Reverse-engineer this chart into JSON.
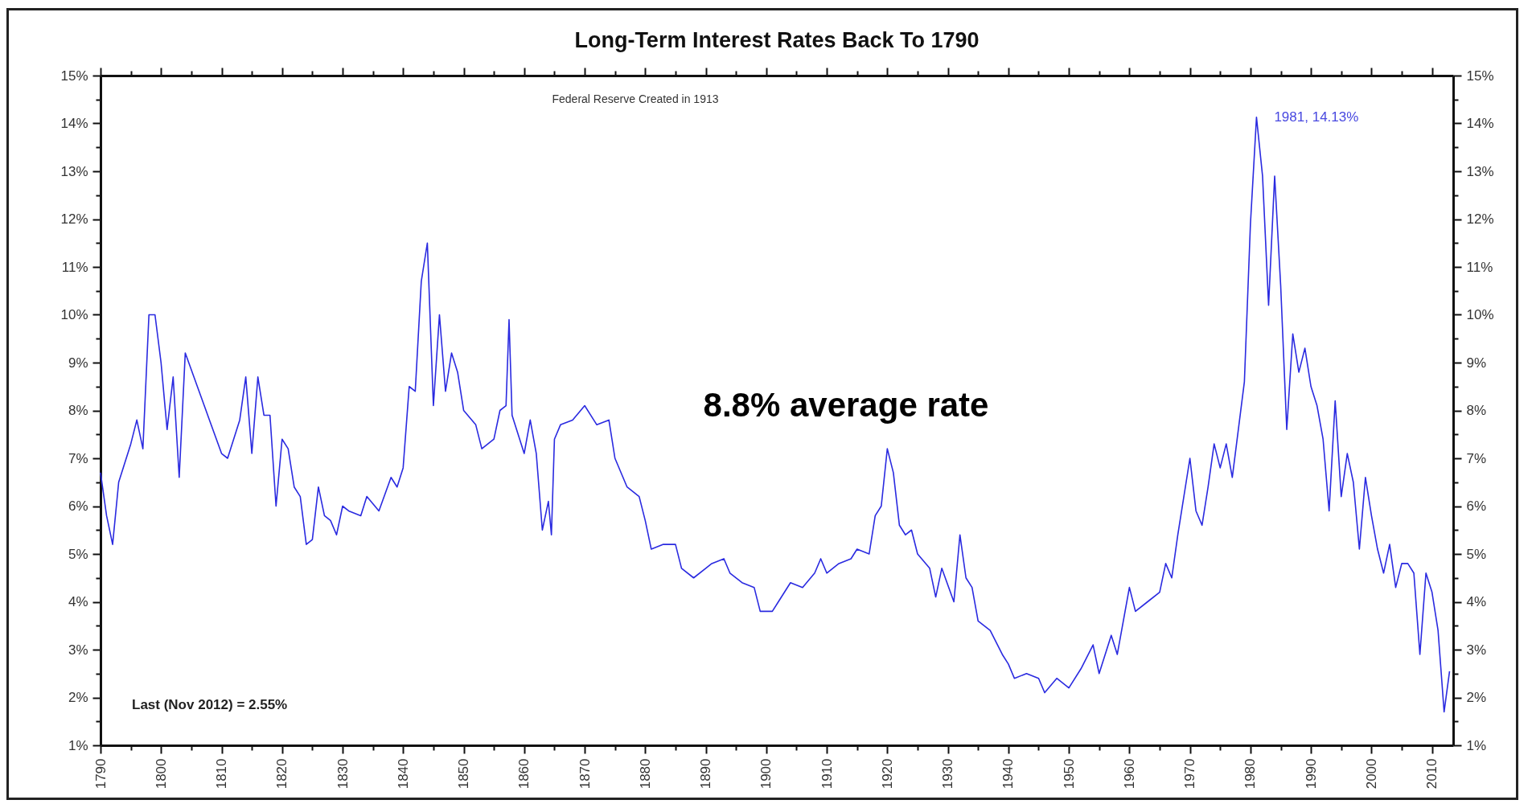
{
  "chart_data": {
    "type": "line",
    "title": "Long-Term Interest Rates Back To 1790",
    "x": [
      1790,
      1791,
      1792,
      1793,
      1795,
      1796,
      1797,
      1798,
      1799,
      1800,
      1801,
      1802,
      1803,
      1804,
      1806,
      1808,
      1810,
      1811,
      1813,
      1814,
      1815,
      1816,
      1817,
      1818,
      1819,
      1820,
      1821,
      1822,
      1823,
      1824,
      1825,
      1826,
      1827,
      1828,
      1829,
      1830,
      1831,
      1833,
      1834,
      1836,
      1838,
      1839,
      1840,
      1841,
      1842,
      1843,
      1844,
      1845,
      1846,
      1847,
      1848,
      1849,
      1850,
      1852,
      1853,
      1855,
      1856,
      1857,
      1857.5,
      1858,
      1859,
      1860,
      1861,
      1862,
      1863,
      1864,
      1864.5,
      1865,
      1866,
      1868,
      1870,
      1872,
      1874,
      1874.5,
      1875,
      1877,
      1879,
      1880,
      1881,
      1883,
      1885,
      1886,
      1888,
      1890,
      1891,
      1893,
      1894,
      1896,
      1898,
      1899,
      1901,
      1902,
      1904,
      1906,
      1908,
      1909,
      1910,
      1912,
      1914,
      1915,
      1917,
      1918,
      1919,
      1920,
      1921,
      1922,
      1923,
      1924,
      1925,
      1927,
      1928,
      1929,
      1931,
      1932,
      1933,
      1934,
      1935,
      1937,
      1939,
      1940,
      1941,
      1943,
      1945,
      1946,
      1948,
      1950,
      1952,
      1954,
      1955,
      1957,
      1958,
      1960,
      1961,
      1963,
      1965,
      1966,
      1967,
      1968,
      1970,
      1971,
      1972,
      1973,
      1974,
      1975,
      1976,
      1977,
      1978,
      1979,
      1980,
      1981,
      1982,
      1983,
      1984,
      1985,
      1986,
      1987,
      1988,
      1989,
      1990,
      1991,
      1992,
      1993,
      1994,
      1995,
      1996,
      1997,
      1998,
      1999,
      2000,
      2001,
      2002,
      2003,
      2004,
      2005,
      2006,
      2007,
      2008,
      2009,
      2010,
      2011,
      2012,
      2012.9
    ],
    "series": [
      {
        "color": "#2a2ae0",
        "values": [
          6.7,
          5.8,
          5.2,
          6.5,
          7.3,
          7.8,
          7.2,
          10.0,
          10.0,
          9.0,
          7.6,
          8.7,
          6.6,
          9.2,
          8.5,
          7.8,
          7.1,
          7.0,
          7.8,
          8.7,
          7.1,
          8.7,
          7.9,
          7.9,
          6.0,
          7.4,
          7.2,
          6.4,
          6.2,
          5.2,
          5.3,
          6.4,
          5.8,
          5.7,
          5.4,
          6.0,
          5.9,
          5.8,
          6.2,
          5.9,
          6.6,
          6.4,
          6.8,
          8.5,
          8.4,
          10.7,
          11.5,
          8.1,
          10.0,
          8.4,
          9.2,
          8.8,
          8.0,
          7.7,
          7.2,
          7.4,
          8.0,
          8.1,
          9.9,
          7.9,
          7.5,
          7.1,
          7.8,
          7.1,
          5.5,
          6.1,
          5.4,
          7.4,
          7.7,
          7.8,
          8.1,
          7.7,
          7.8,
          7.4,
          7.0,
          6.4,
          6.2,
          5.7,
          5.1,
          5.2,
          5.2,
          4.7,
          4.5,
          4.7,
          4.8,
          4.9,
          4.6,
          4.4,
          4.3,
          3.8,
          3.8,
          4.0,
          4.4,
          4.3,
          4.6,
          4.9,
          4.6,
          4.8,
          4.9,
          5.1,
          5.0,
          5.8,
          6.0,
          7.2,
          6.7,
          5.6,
          5.4,
          5.5,
          5.0,
          4.7,
          4.1,
          4.7,
          4.0,
          5.4,
          4.5,
          4.3,
          3.6,
          3.4,
          2.9,
          2.7,
          2.4,
          2.5,
          2.4,
          2.1,
          2.4,
          2.2,
          2.6,
          3.1,
          2.5,
          3.3,
          2.9,
          4.3,
          3.8,
          4.0,
          4.2,
          4.8,
          4.5,
          5.4,
          7.0,
          5.9,
          5.6,
          6.4,
          7.3,
          6.8,
          7.3,
          6.6,
          7.6,
          8.6,
          11.9,
          14.13,
          12.9,
          10.2,
          12.9,
          10.6,
          7.6,
          9.6,
          8.8,
          9.3,
          8.5,
          8.1,
          7.4,
          5.9,
          8.2,
          6.2,
          7.1,
          6.5,
          5.1,
          6.6,
          5.8,
          5.1,
          4.6,
          5.2,
          4.3,
          4.8,
          4.8,
          4.6,
          2.9,
          4.6,
          4.2,
          3.4,
          1.7,
          2.55
        ]
      }
    ],
    "xlim": [
      1790,
      2013.5
    ],
    "xticks": [
      1790,
      {
        "value": 1795,
        "label": null
      },
      1800,
      {
        "value": 1805,
        "label": null
      },
      1810,
      {
        "value": 1815,
        "label": null
      },
      1820,
      {
        "value": 1825,
        "label": null
      },
      1830,
      {
        "value": 1835,
        "label": null
      },
      1840,
      {
        "value": 1845,
        "label": null
      },
      1850,
      {
        "value": 1855,
        "label": null
      },
      1860,
      {
        "value": 1865,
        "label": null
      },
      1870,
      {
        "value": 1875,
        "label": null
      },
      1880,
      {
        "value": 1885,
        "label": null
      },
      1890,
      {
        "value": 1895,
        "label": null
      },
      1900,
      {
        "value": 1905,
        "label": null
      },
      1910,
      {
        "value": 1915,
        "label": null
      },
      1920,
      {
        "value": 1925,
        "label": null
      },
      1930,
      {
        "value": 1935,
        "label": null
      },
      1940,
      {
        "value": 1945,
        "label": null
      },
      1950,
      {
        "value": 1955,
        "label": null
      },
      1960,
      {
        "value": 1965,
        "label": null
      },
      1970,
      {
        "value": 1975,
        "label": null
      },
      1980,
      {
        "value": 1985,
        "label": null
      },
      1990,
      {
        "value": 1995,
        "label": null
      },
      2000,
      {
        "value": 2005,
        "label": null
      },
      2010
    ],
    "ylim": [
      1,
      15
    ],
    "yticks": [
      {
        "value": 1,
        "label": "1%"
      },
      {
        "value": 1.5,
        "label": null
      },
      {
        "value": 2,
        "label": "2%"
      },
      {
        "value": 2.5,
        "label": null
      },
      {
        "value": 3,
        "label": "3%"
      },
      {
        "value": 3.5,
        "label": null
      },
      {
        "value": 4,
        "label": "4%"
      },
      {
        "value": 4.5,
        "label": null
      },
      {
        "value": 5,
        "label": "5%"
      },
      {
        "value": 5.5,
        "label": null
      },
      {
        "value": 6,
        "label": "6%"
      },
      {
        "value": 6.5,
        "label": null
      },
      {
        "value": 7,
        "label": "7%"
      },
      {
        "value": 7.5,
        "label": null
      },
      {
        "value": 8,
        "label": "8%"
      },
      {
        "value": 8.5,
        "label": null
      },
      {
        "value": 9,
        "label": "9%"
      },
      {
        "value": 9.5,
        "label": null
      },
      {
        "value": 10,
        "label": "10%"
      },
      {
        "value": 10.5,
        "label": null
      },
      {
        "value": 11,
        "label": "11%"
      },
      {
        "value": 11.5,
        "label": null
      },
      {
        "value": 12,
        "label": "12%"
      },
      {
        "value": 12.5,
        "label": null
      },
      {
        "value": 13,
        "label": "13%"
      },
      {
        "value": 13.5,
        "label": null
      },
      {
        "value": 14,
        "label": "14%"
      },
      {
        "value": 14.5,
        "label": null
      },
      {
        "value": 15,
        "label": "15%"
      }
    ],
    "y2lim": [
      1,
      15
    ],
    "y2ticks": [
      {
        "value": 1,
        "label": "1%"
      },
      {
        "value": 1.5,
        "label": null
      },
      {
        "value": 2,
        "label": "2%"
      },
      {
        "value": 2.5,
        "label": null
      },
      {
        "value": 3,
        "label": "3%"
      },
      {
        "value": 3.5,
        "label": null
      },
      {
        "value": 4,
        "label": "4%"
      },
      {
        "value": 4.5,
        "label": null
      },
      {
        "value": 5,
        "label": "5%"
      },
      {
        "value": 5.5,
        "label": null
      },
      {
        "value": 6,
        "label": "6%"
      },
      {
        "value": 6.5,
        "label": null
      },
      {
        "value": 7,
        "label": "7%"
      },
      {
        "value": 7.5,
        "label": null
      },
      {
        "value": 8,
        "label": "8%"
      },
      {
        "value": 8.5,
        "label": null
      },
      {
        "value": 9,
        "label": "9%"
      },
      {
        "value": 9.5,
        "label": null
      },
      {
        "value": 10,
        "label": "10%"
      },
      {
        "value": 10.5,
        "label": null
      },
      {
        "value": 11,
        "label": "11%"
      },
      {
        "value": 11.5,
        "label": null
      },
      {
        "value": 12,
        "label": "12%"
      },
      {
        "value": 12.5,
        "label": null
      },
      {
        "value": 13,
        "label": "13%"
      },
      {
        "value": 13.5,
        "label": null
      },
      {
        "value": 14,
        "label": "14%"
      },
      {
        "value": 14.5,
        "label": null
      },
      {
        "value": 15,
        "label": "15%"
      }
    ],
    "annotations": [
      "Federal Reserve Created in 1913",
      "8.8% average rate",
      "Last (Nov 2012) = 2.55%",
      {
        "text": "1981, 14.13%",
        "x": 1981,
        "y": 14.13
      }
    ],
    "grid": false,
    "line_style": "solid"
  }
}
